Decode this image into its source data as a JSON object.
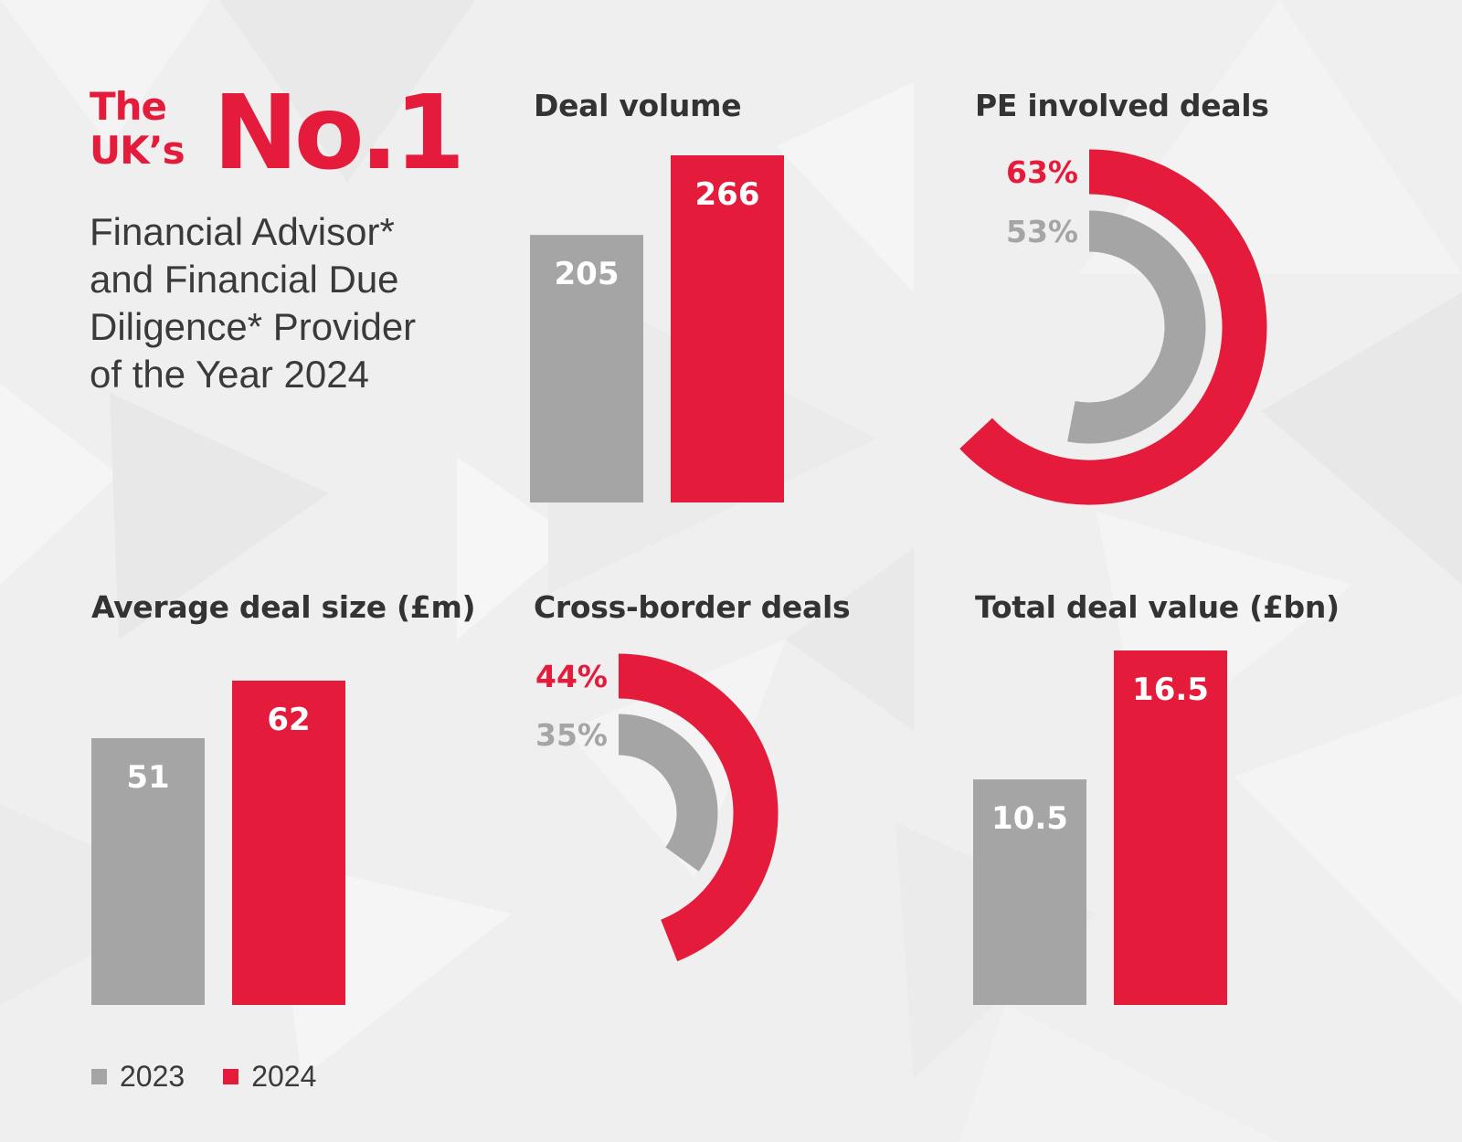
{
  "hero": {
    "line1": "The",
    "line2": "UK’s",
    "big": "No.1",
    "subtitle": "Financial Advisor*\nand Financial Due\nDiligence* Provider\nof the Year 2024"
  },
  "colors": {
    "y2023": "#a5a5a5",
    "y2024": "#e51b3b",
    "text": "#333333",
    "background": "#efefef"
  },
  "legend": [
    {
      "label": "2023",
      "color": "#a5a5a5"
    },
    {
      "label": "2024",
      "color": "#e51b3b"
    }
  ],
  "chart_data": [
    {
      "id": "deal-volume",
      "type": "bar",
      "title": "Deal volume",
      "categories": [
        "2023",
        "2024"
      ],
      "values": [
        205,
        266
      ],
      "labels": [
        "205",
        "266"
      ],
      "xlabel": "",
      "ylabel": "",
      "ylim": [
        0,
        266
      ],
      "grid": false
    },
    {
      "id": "pe-involved-deals",
      "type": "pie",
      "title": "PE involved deals",
      "categories": [
        "2023",
        "2024"
      ],
      "values": [
        53,
        63
      ],
      "labels": [
        "53%",
        "63%"
      ],
      "unit": "%"
    },
    {
      "id": "average-deal-size",
      "type": "bar",
      "title": "Average deal size (£m)",
      "categories": [
        "2023",
        "2024"
      ],
      "values": [
        51,
        62
      ],
      "labels": [
        "51",
        "62"
      ],
      "xlabel": "",
      "ylabel": "",
      "ylim": [
        0,
        62
      ],
      "grid": false
    },
    {
      "id": "cross-border-deals",
      "type": "pie",
      "title": "Cross-border deals",
      "categories": [
        "2023",
        "2024"
      ],
      "values": [
        35,
        44
      ],
      "labels": [
        "35%",
        "44%"
      ],
      "unit": "%"
    },
    {
      "id": "total-deal-value",
      "type": "bar",
      "title": "Total deal value (£bn)",
      "categories": [
        "2023",
        "2024"
      ],
      "values": [
        10.5,
        16.5
      ],
      "labels": [
        "10.5",
        "16.5"
      ],
      "xlabel": "",
      "ylabel": "",
      "ylim": [
        0,
        16.5
      ],
      "grid": false
    }
  ]
}
